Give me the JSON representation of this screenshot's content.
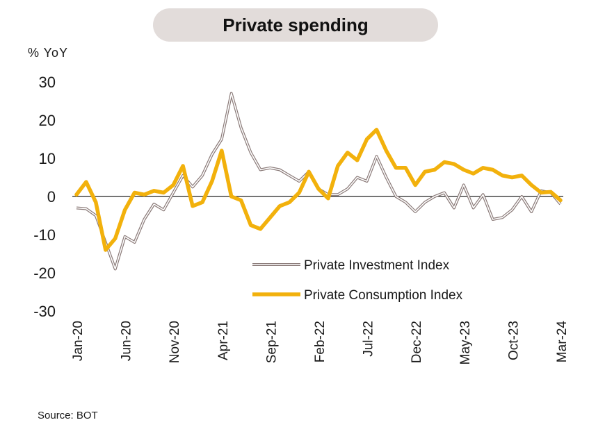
{
  "title": "Private spending",
  "ylabel": "% YoY",
  "source": "Source: BOT",
  "colors": {
    "investment": "#8a7a78",
    "consumption": "#f2b10c"
  },
  "chart_data": {
    "type": "line",
    "title": "Private spending",
    "ylabel": "% YoY",
    "ylim": [
      -30,
      30
    ],
    "yticks": [
      30,
      20,
      10,
      0,
      -10,
      -20,
      -30
    ],
    "x_start": "Jan-20",
    "x_end": "Mar-24",
    "x_tick_labels": [
      "Jan-20",
      "Jun-20",
      "Nov-20",
      "Apr-21",
      "Sep-21",
      "Feb-22",
      "Jul-22",
      "Dec-22",
      "May-23",
      "Oct-23",
      "Mar-24"
    ],
    "legend_position": "bottom-center",
    "grid": false,
    "series": [
      {
        "name": "Private Investment Index",
        "style": "thin-outlined",
        "values": [
          -3,
          -3.2,
          -5,
          -12,
          -19,
          -10.5,
          -12,
          -6,
          -2,
          -3.5,
          1,
          5.5,
          2.5,
          5.5,
          11,
          15,
          27,
          18,
          11.5,
          7,
          7.5,
          7,
          5.5,
          4,
          6.5,
          2,
          0.5,
          0.5,
          2,
          5,
          4,
          10.5,
          5,
          0,
          -1.5,
          -4,
          -1.5,
          0,
          1,
          -3,
          3,
          -3,
          0.5,
          -6,
          -5.5,
          -3.5,
          0,
          -4,
          1.5,
          1,
          -2
        ]
      },
      {
        "name": "Private Consumption Index",
        "style": "thick",
        "values": [
          0.5,
          3.8,
          -1.5,
          -14,
          -11,
          -3.5,
          1,
          0.5,
          1.5,
          1,
          3,
          8,
          -2.5,
          -1.5,
          4,
          12,
          0,
          -1,
          -7.5,
          -8.5,
          -5.5,
          -2.5,
          -1.5,
          1,
          6.5,
          2,
          -0.5,
          8,
          11.5,
          9.5,
          15,
          17.5,
          12,
          7.5,
          7.5,
          3,
          6.5,
          7,
          9,
          8.5,
          7,
          6,
          7.5,
          7,
          5.5,
          5,
          5.5,
          3,
          1,
          1.2,
          -1
        ]
      }
    ]
  }
}
